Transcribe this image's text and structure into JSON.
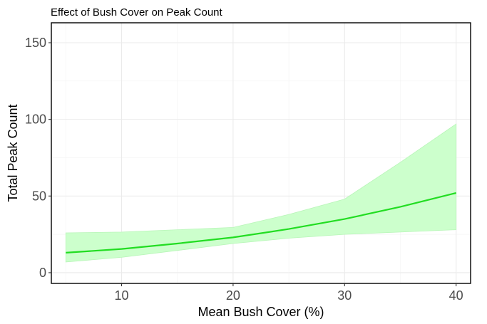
{
  "colors": {
    "line": "#22dd22",
    "ribbon": "#ccffcc",
    "ribbon_edge": "#b8f5b8"
  },
  "chart_data": {
    "type": "line",
    "title": "Effect of Bush Cover on Peak Count",
    "xlabel": "Mean Bush Cover (%)",
    "ylabel": "Total Peak Count",
    "xlim": [
      3.7,
      41.3
    ],
    "ylim": [
      -7,
      163
    ],
    "x_ticks": [
      10,
      20,
      30,
      40
    ],
    "y_ticks": [
      0,
      50,
      100,
      150
    ],
    "grid": true,
    "series": [
      {
        "x": [
          5,
          10,
          15,
          20,
          25,
          30,
          35,
          40
        ],
        "y": [
          13,
          15.5,
          19,
          23,
          28.5,
          35,
          43,
          52
        ],
        "lower": [
          7,
          10,
          14.5,
          19,
          22.5,
          25,
          26.5,
          28
        ],
        "upper": [
          26,
          26.5,
          28,
          29.5,
          38,
          48,
          72,
          97
        ]
      }
    ]
  }
}
